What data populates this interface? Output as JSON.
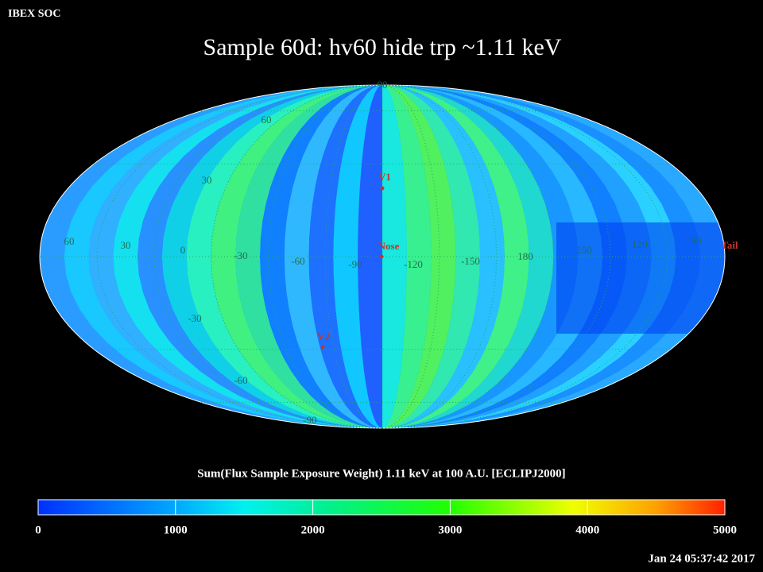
{
  "header": {
    "source": "IBEX SOC",
    "title": "Sample 60d: hv60 hide trp ~1.11 keV",
    "timestamp": "Jan 24 05:37:42 2017"
  },
  "map": {
    "longitude_labels": [
      "60",
      "30",
      "0",
      "-30",
      "-60",
      "-90",
      "-120",
      "-150",
      "180",
      "150",
      "120",
      "90"
    ],
    "latitude_labels": [
      "90",
      "60",
      "30",
      "-30",
      "-60",
      "-90"
    ],
    "markers": [
      "V1",
      "Nose",
      "V2",
      "Tail"
    ]
  },
  "colorbar": {
    "label": "Sum(Flux Sample Exposure Weight)  1.11 keV at 100 A.U. [ECLIPJ2000]",
    "ticks": [
      0,
      1000,
      2000,
      3000,
      4000,
      5000
    ]
  }
}
